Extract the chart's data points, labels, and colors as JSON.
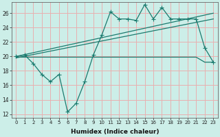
{
  "xlabel": "Humidex (Indice chaleur)",
  "bg_color": "#cceee8",
  "grid_color": "#e8b0b0",
  "line_color": "#1a7a6e",
  "xlim": [
    -0.5,
    23.5
  ],
  "ylim": [
    11.5,
    27.5
  ],
  "yticks": [
    12,
    14,
    16,
    18,
    20,
    22,
    24,
    26
  ],
  "xticks": [
    0,
    1,
    2,
    3,
    4,
    5,
    6,
    7,
    8,
    9,
    10,
    11,
    12,
    13,
    14,
    15,
    16,
    17,
    18,
    19,
    20,
    21,
    22,
    23
  ],
  "line1_x": [
    0,
    1,
    2,
    3,
    4,
    5,
    6,
    7,
    8,
    9,
    10,
    11,
    12,
    13,
    14,
    15,
    16,
    17,
    18,
    19,
    20,
    21,
    22,
    23
  ],
  "line1_y": [
    20.0,
    20.2,
    19.0,
    17.5,
    16.5,
    17.5,
    12.3,
    13.5,
    16.5,
    20.2,
    23.0,
    26.2,
    25.2,
    25.2,
    25.0,
    27.2,
    25.2,
    26.8,
    25.2,
    25.2,
    25.2,
    25.2,
    21.2,
    19.2
  ],
  "line2_x": [
    0,
    23
  ],
  "line2_y": [
    20.0,
    26.0
  ],
  "line3_x": [
    0,
    23
  ],
  "line3_y": [
    19.8,
    25.2
  ],
  "line4_x": [
    0,
    1,
    2,
    3,
    4,
    5,
    6,
    7,
    8,
    9,
    10,
    11,
    12,
    13,
    14,
    15,
    16,
    17,
    18,
    19,
    20,
    21,
    22,
    23
  ],
  "line4_y": [
    19.9,
    19.9,
    19.9,
    19.9,
    19.9,
    19.9,
    19.9,
    19.9,
    19.9,
    19.9,
    19.9,
    19.9,
    19.9,
    19.9,
    19.9,
    19.9,
    19.9,
    19.9,
    19.9,
    19.9,
    19.9,
    19.9,
    19.2,
    19.2
  ]
}
